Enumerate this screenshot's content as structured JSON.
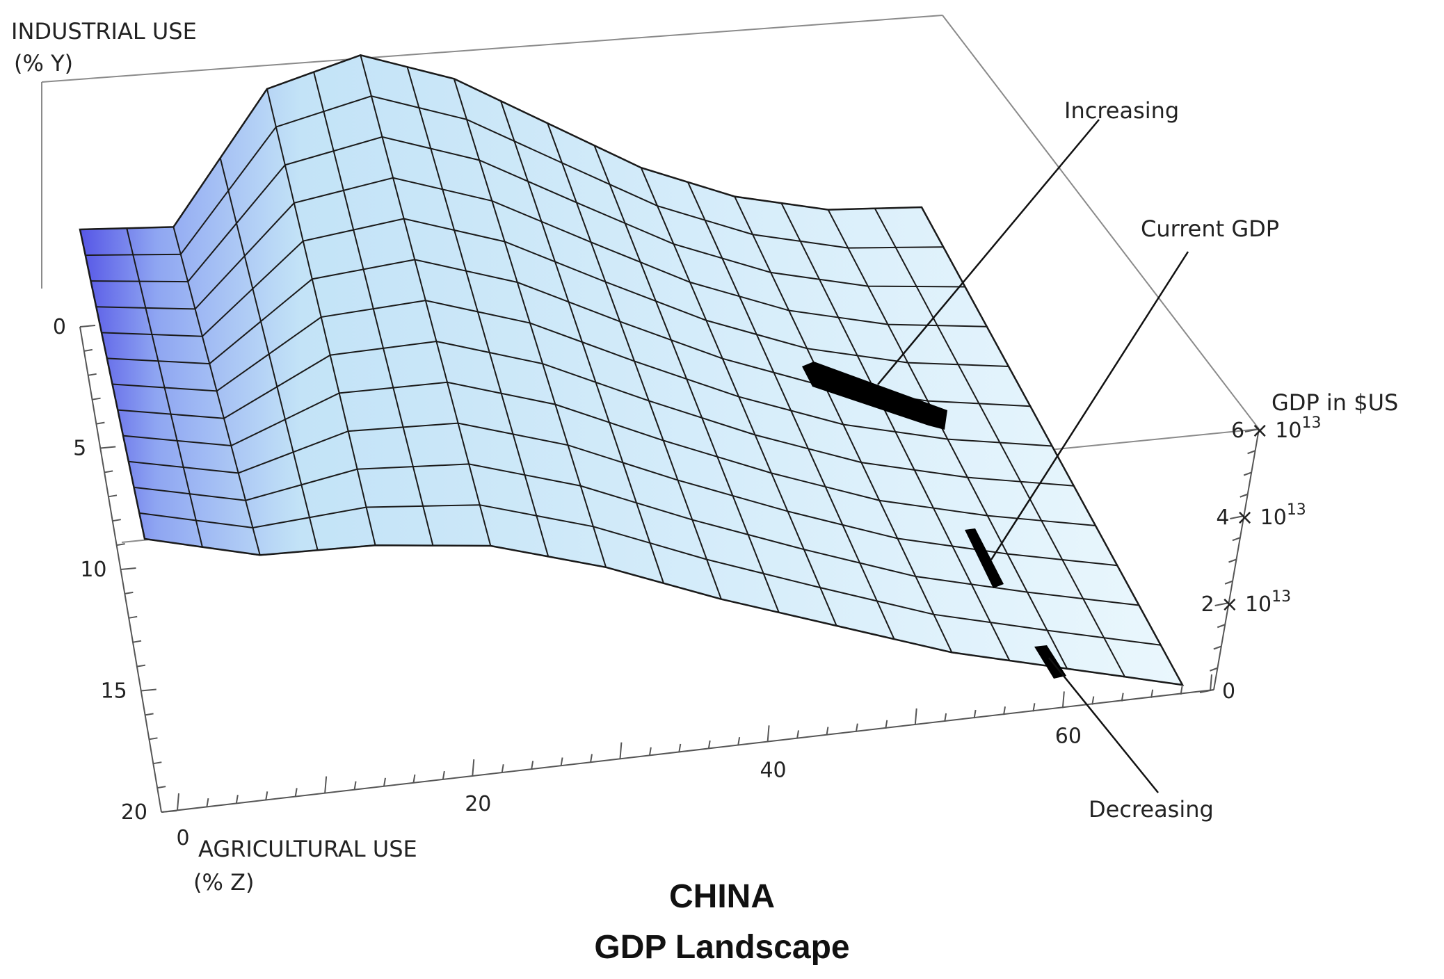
{
  "chart_data": {
    "type": "surface3d",
    "title": "CHINA",
    "subtitle": "GDP Landscape",
    "x_axis": {
      "label_line1": "AGRICULTURAL USE",
      "label_line2": "(% Z)",
      "range": [
        0,
        70
      ],
      "ticks": [
        "0",
        "20",
        "40",
        "60"
      ]
    },
    "y_axis": {
      "label_line1": "INDUSTRIAL USE",
      "label_line2": "(% Y)",
      "range": [
        0,
        20
      ],
      "ticks": [
        "0",
        "5",
        "10",
        "15",
        "20"
      ]
    },
    "z_axis": {
      "label": "GDP in $US",
      "range": [
        0,
        60000000000000
      ],
      "ticks": [
        {
          "mant": "0",
          "exp": ""
        },
        {
          "mant": "2 × 10",
          "exp": "13"
        },
        {
          "mant": "4 × 10",
          "exp": "13"
        },
        {
          "mant": "6 × 10",
          "exp": "13"
        }
      ]
    },
    "annotations": [
      "Increasing",
      "Current GDP",
      "Decreasing"
    ],
    "colors": {
      "surface_light": "#e8f6fc",
      "surface_mid": "#c3e3f7",
      "surface_dark": "#5656e6",
      "mesh": "#1a1a1a",
      "box": "#8a8a8a",
      "marker": "#000000"
    }
  }
}
